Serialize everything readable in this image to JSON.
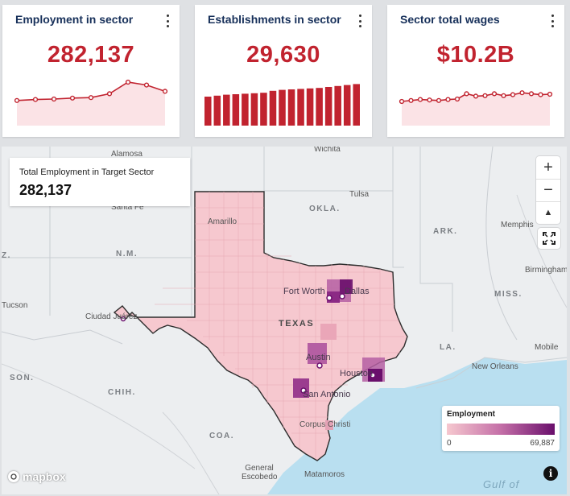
{
  "cards": [
    {
      "title": "Employment in sector",
      "value": "282,137",
      "chart_kind": "line",
      "trend": [
        52,
        54,
        55,
        57,
        58,
        66,
        90,
        84,
        71
      ]
    },
    {
      "title": "Establishments in sector",
      "value": "29,630",
      "chart_kind": "bar",
      "trend": [
        60,
        62,
        64,
        65,
        66,
        67,
        68,
        72,
        74,
        75,
        76,
        77,
        78,
        80,
        82,
        84,
        86
      ]
    },
    {
      "title": "Sector total wages",
      "value": "$10.2B",
      "chart_kind": "line",
      "trend": [
        50,
        52,
        54,
        53,
        52,
        54,
        55,
        66,
        61,
        62,
        66,
        62,
        64,
        68,
        66,
        64,
        65
      ]
    }
  ],
  "summary": {
    "title": "Total Employment in Target Sector",
    "value": "282,137"
  },
  "legend": {
    "title": "Employment",
    "min": "0",
    "max": "69,887",
    "color_low": "#f6c8cf",
    "color_high": "#6a0f6c"
  },
  "map_labels": {
    "states": [
      "OKLA.",
      "ARK.",
      "N.M.",
      "MISS.",
      "TEXAS",
      "LA.",
      "CHIH.",
      "COA.",
      "SON.",
      "Z."
    ],
    "cities": [
      "Wichita",
      "Tulsa",
      "Amarillo",
      "Memphis",
      "Birmingham",
      "Fort Worth",
      "Dallas",
      "Ciudad Juárez",
      "Austin",
      "Houston",
      "San Antonio",
      "Corpus Christi",
      "Mobile",
      "New Orleans",
      "Alamosa",
      "Santa Fe",
      "Tucson",
      "General Escobedo",
      "Matamoros",
      "Gulf of"
    ]
  },
  "controls": {
    "zoom_in": "+",
    "zoom_out": "−",
    "reset_north": "▲",
    "fullscreen": "⛶",
    "attribution": "i"
  },
  "brand": {
    "mapbox": "mapbox"
  },
  "colors": {
    "accent": "#c1232f",
    "title": "#17305a",
    "texas_fill": "#f6c8cf",
    "water": "#b9dff0"
  }
}
